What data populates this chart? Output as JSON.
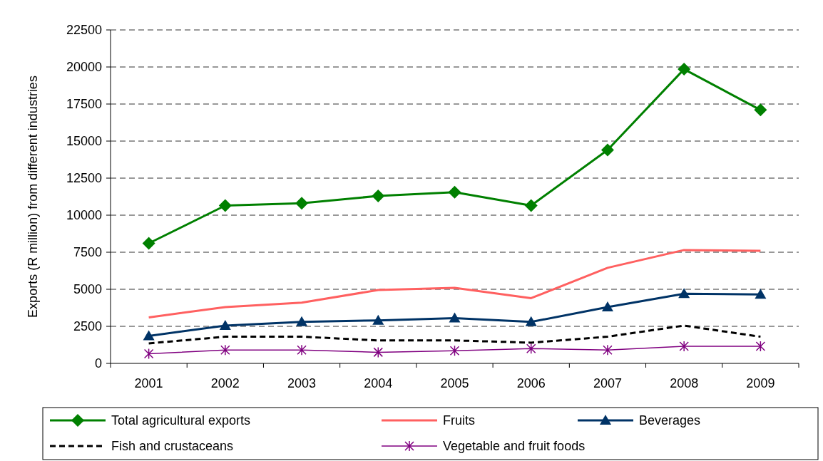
{
  "chart_data": {
    "type": "line",
    "ylabel": "Exports (R million) from different industries",
    "categories": [
      "2001",
      "2002",
      "2003",
      "2004",
      "2005",
      "2006",
      "2007",
      "2008",
      "2009"
    ],
    "series": [
      {
        "name": "Total agricultural exports",
        "color": "#008000",
        "marker": "diamond",
        "line_style": "solid",
        "values": [
          8100,
          10650,
          10800,
          11300,
          11550,
          10650,
          14400,
          19850,
          17100
        ]
      },
      {
        "name": "Fruits",
        "color": "#ff6060",
        "marker": "none",
        "line_style": "solid",
        "values": [
          3100,
          3800,
          4100,
          4950,
          5100,
          4400,
          6450,
          7650,
          7600
        ]
      },
      {
        "name": "Beverages",
        "color": "#003366",
        "marker": "triangle",
        "line_style": "solid",
        "values": [
          1850,
          2550,
          2800,
          2900,
          3050,
          2800,
          3800,
          4700,
          4650
        ]
      },
      {
        "name": "Fish and crustaceans",
        "color": "#000000",
        "marker": "none",
        "line_style": "dashed",
        "values": [
          1350,
          1800,
          1800,
          1550,
          1550,
          1400,
          1800,
          2550,
          1800
        ]
      },
      {
        "name": "Vegetable and fruit foods",
        "color": "#800080",
        "marker": "cross",
        "line_style": "solid",
        "values": [
          650,
          900,
          900,
          750,
          850,
          1000,
          900,
          1150,
          1150
        ]
      }
    ],
    "ylim": [
      0,
      22500
    ],
    "yticks": [
      0,
      2500,
      5000,
      7500,
      10000,
      12500,
      15000,
      17500,
      20000,
      22500
    ],
    "grid": "y",
    "legend": "bottom"
  }
}
